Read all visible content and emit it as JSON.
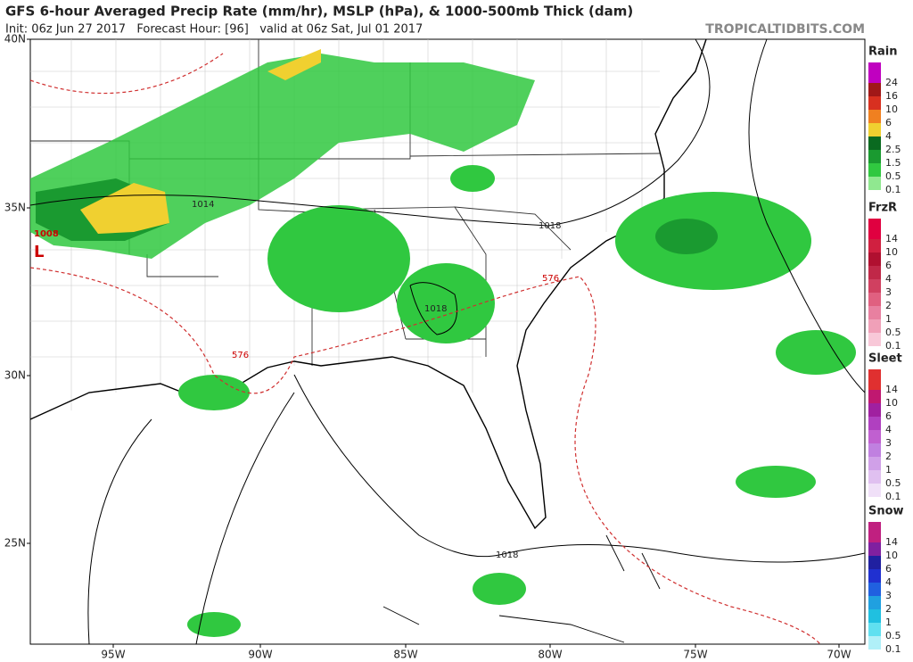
{
  "header": {
    "title": "GFS 6-hour Averaged Precip Rate (mm/hr), MSLP (hPa), & 1000-500mb Thick (dam)",
    "subtitle": "Init: 06z Jun 27 2017   Forecast Hour: [96]   valid at 06z Sat, Jul 01 2017",
    "source": "TROPICALTIDBITS.COM"
  },
  "map": {
    "lat_labels": [
      "40N",
      "35N",
      "30N",
      "25N"
    ],
    "lon_labels": [
      "95W",
      "90W",
      "85W",
      "80W",
      "75W",
      "70W"
    ],
    "annotations": [
      "1008",
      "L",
      "1014",
      "1018",
      "1018",
      "1018",
      "576",
      "576"
    ]
  },
  "legend": [
    {
      "name": "Rain",
      "items": [
        {
          "label": "24",
          "color": "#c000c0"
        },
        {
          "label": "16",
          "color": "#a01818"
        },
        {
          "label": "10",
          "color": "#d83020"
        },
        {
          "label": "6",
          "color": "#f08020"
        },
        {
          "label": "4",
          "color": "#f0d030"
        },
        {
          "label": "2.5",
          "color": "#0a6a20"
        },
        {
          "label": "1.5",
          "color": "#1a9a30"
        },
        {
          "label": "0.5",
          "color": "#30c840"
        },
        {
          "label": "0.1",
          "color": "#90e890"
        }
      ]
    },
    {
      "name": "FrzR",
      "items": [
        {
          "label": "14",
          "color": "#e00040"
        },
        {
          "label": "10",
          "color": "#d02040"
        },
        {
          "label": "6",
          "color": "#b01030"
        },
        {
          "label": "4",
          "color": "#c02848"
        },
        {
          "label": "3",
          "color": "#d04060"
        },
        {
          "label": "2",
          "color": "#e06080"
        },
        {
          "label": "1",
          "color": "#e880a0"
        },
        {
          "label": "0.5",
          "color": "#f0a0b8"
        },
        {
          "label": "0.1",
          "color": "#f8c8d8"
        }
      ]
    },
    {
      "name": "Sleet",
      "items": [
        {
          "label": "14",
          "color": "#e03030"
        },
        {
          "label": "10",
          "color": "#c01870"
        },
        {
          "label": "6",
          "color": "#a020a0"
        },
        {
          "label": "4",
          "color": "#b040c0"
        },
        {
          "label": "3",
          "color": "#c060d0"
        },
        {
          "label": "2",
          "color": "#c080e0"
        },
        {
          "label": "1",
          "color": "#d0a0e8"
        },
        {
          "label": "0.5",
          "color": "#e0c0f0"
        },
        {
          "label": "0.1",
          "color": "#f0e0f8"
        }
      ]
    },
    {
      "name": "Snow",
      "items": [
        {
          "label": "14",
          "color": "#c02080"
        },
        {
          "label": "10",
          "color": "#8020a0"
        },
        {
          "label": "6",
          "color": "#2020a0"
        },
        {
          "label": "4",
          "color": "#2030d0"
        },
        {
          "label": "3",
          "color": "#2060e0"
        },
        {
          "label": "2",
          "color": "#20a0e0"
        },
        {
          "label": "1",
          "color": "#20c0e0"
        },
        {
          "label": "0.5",
          "color": "#60e0f0"
        },
        {
          "label": "0.1",
          "color": "#b0f0f8"
        }
      ]
    }
  ]
}
